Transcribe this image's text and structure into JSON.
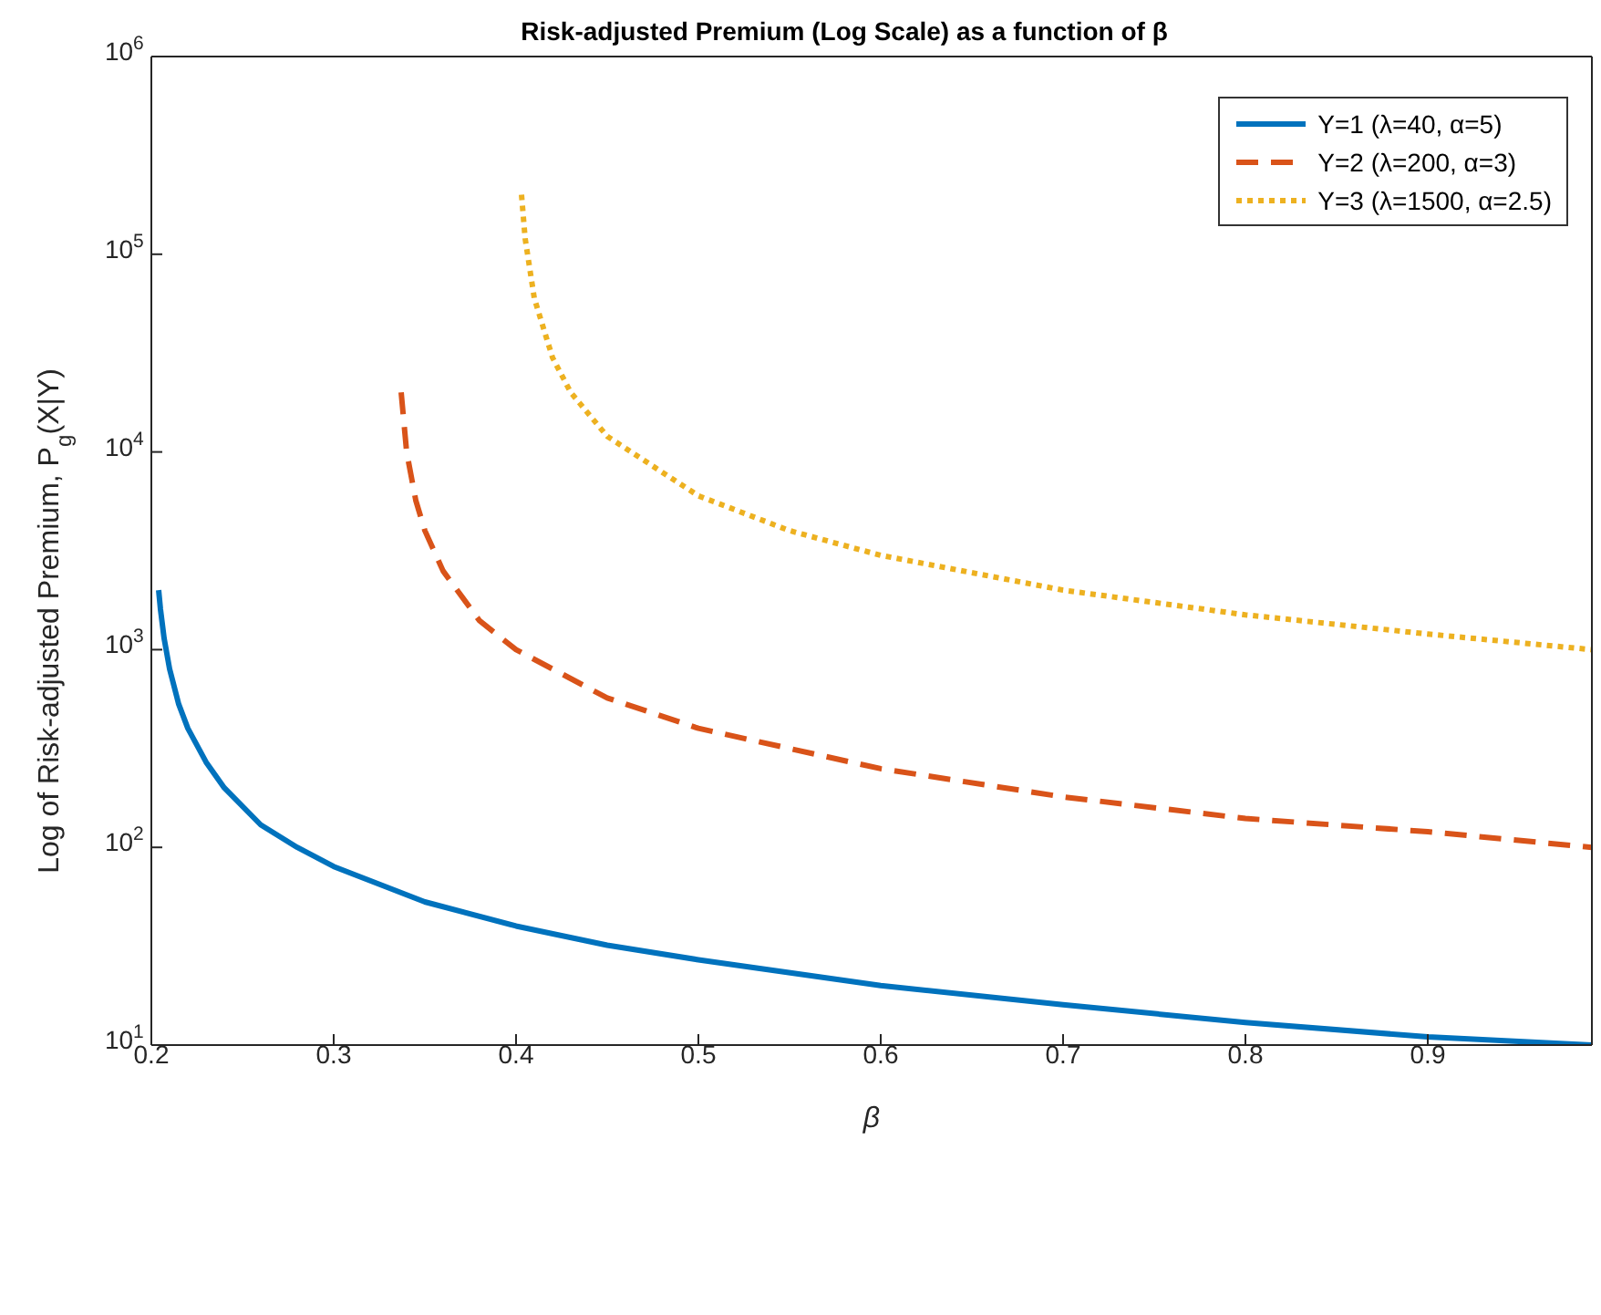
{
  "chart_data": {
    "type": "line",
    "title": "Risk-adjusted Premium (Log Scale) as a function of β",
    "xlabel": "β",
    "ylabel": "Log of Risk-adjusted Premium, P$_{g}$(X|Y)",
    "log": "y",
    "grid": false,
    "legend": "top right",
    "marker": "none",
    "xlim": [
      0.2,
      0.99
    ],
    "xticks": [
      0.2,
      0.3,
      0.4,
      0.5,
      0.6,
      0.7,
      0.8,
      0.9
    ],
    "ylim": [
      10,
      1000000
    ],
    "yticks": [
      {
        "value": 10,
        "label": "10$^{1}$"
      },
      {
        "value": 100,
        "label": "10$^{2}$"
      },
      {
        "value": 1000,
        "label": "10$^{3}$"
      },
      {
        "value": 10000,
        "label": "10$^{4}$"
      },
      {
        "value": 100000,
        "label": "10$^{5}$"
      },
      {
        "value": 1000000,
        "label": "10$^{6}$"
      }
    ],
    "series": [
      {
        "name": "Y=1 (λ=40, α=5)",
        "color": "#0072bd",
        "line_style": "solid",
        "x": [
          0.204,
          0.205,
          0.207,
          0.21,
          0.215,
          0.22,
          0.23,
          0.24,
          0.26,
          0.28,
          0.3,
          0.35,
          0.4,
          0.45,
          0.5,
          0.6,
          0.7,
          0.8,
          0.9,
          0.99
        ],
        "values": [
          2000,
          1600,
          1140,
          800,
          530,
          400,
          270,
          200,
          130,
          100,
          80,
          53,
          40,
          32,
          27,
          20,
          16,
          13,
          11,
          10
        ]
      },
      {
        "name": "Y=2 (λ=200, α=3)",
        "color": "#d95319",
        "line_style": "dashed",
        "x": [
          0.337,
          0.34,
          0.345,
          0.35,
          0.36,
          0.38,
          0.4,
          0.45,
          0.5,
          0.6,
          0.7,
          0.8,
          0.9,
          0.99
        ],
        "values": [
          20000,
          10000,
          5700,
          4000,
          2500,
          1400,
          1000,
          570,
          400,
          250,
          180,
          140,
          120,
          100
        ]
      },
      {
        "name": "Y=3 (λ=1500, α=2.5)",
        "color": "#edb120",
        "line_style": "dotted",
        "x": [
          0.403,
          0.405,
          0.41,
          0.42,
          0.43,
          0.45,
          0.5,
          0.55,
          0.6,
          0.7,
          0.8,
          0.9,
          0.99
        ],
        "values": [
          200000,
          120000,
          60000,
          30000,
          20000,
          12000,
          6000,
          4000,
          3000,
          2000,
          1500,
          1200,
          1000
        ]
      }
    ]
  }
}
